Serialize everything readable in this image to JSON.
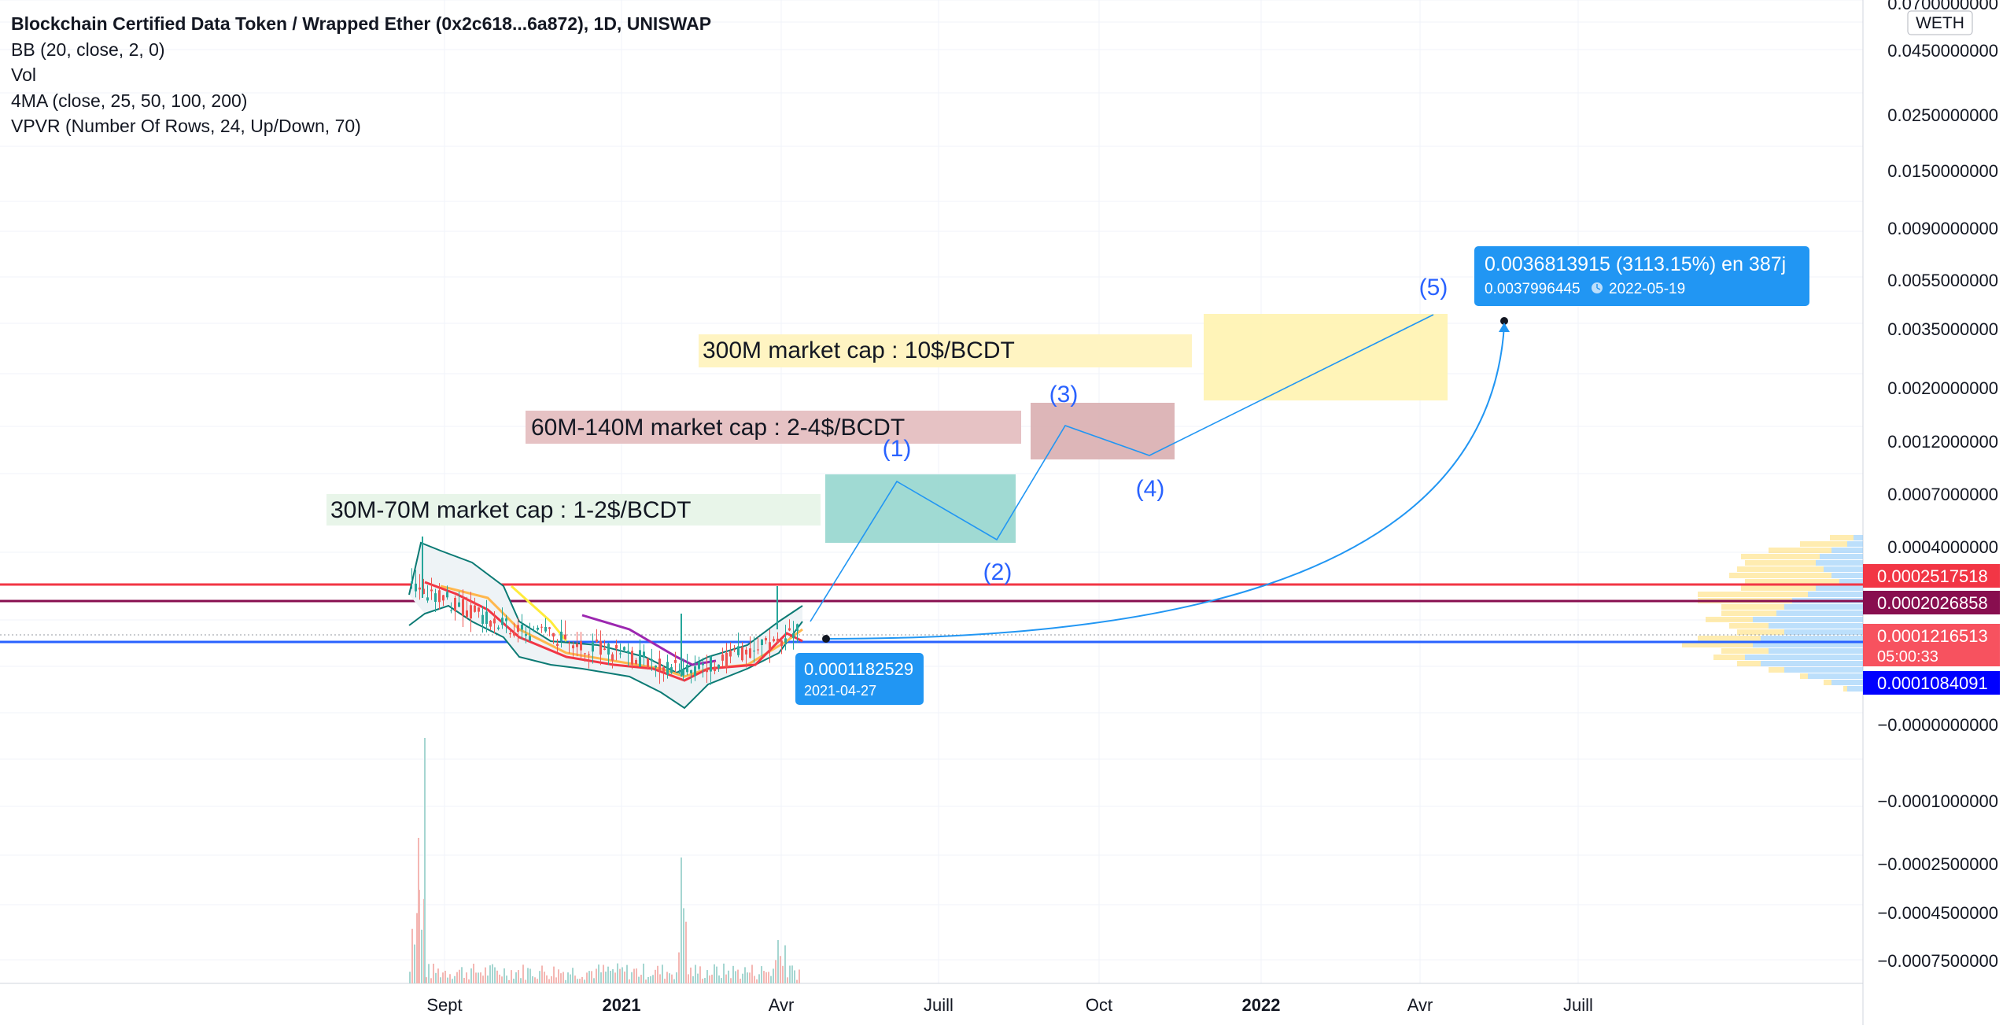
{
  "chart_data": {
    "type": "candlestick",
    "title": "Blockchain Certified Data Token / Wrapped Ether (0x2c618...6a872), 1D, UNISWAP",
    "indicators": [
      "BB (20, close, 2, 0)",
      "Vol",
      "4MA (close, 25, 50, 100, 200)",
      "VPVR (Number Of Rows, 24, Up/Down, 70)"
    ],
    "currency_label": "WETH",
    "x_ticks": [
      {
        "label": "Sept",
        "bold": false
      },
      {
        "label": "2021",
        "bold": true
      },
      {
        "label": "Avr",
        "bold": false
      },
      {
        "label": "Juill",
        "bold": false
      },
      {
        "label": "Oct",
        "bold": false
      },
      {
        "label": "2022",
        "bold": true
      },
      {
        "label": "Avr",
        "bold": false
      },
      {
        "label": "Juill",
        "bold": false
      }
    ],
    "y_ticks": [
      "0.0700000000",
      "0.0450000000",
      "0.0250000000",
      "0.0150000000",
      "0.0090000000",
      "0.0055000000",
      "0.0035000000",
      "0.0020000000",
      "0.0012000000",
      "0.0007000000",
      "0.0004000000",
      "−0.0000000000",
      "−0.0001000000",
      "−0.0002500000",
      "−0.0004500000",
      "−0.0007500000"
    ],
    "price_tags": [
      {
        "label": "0.0002517518",
        "color": "#f23645"
      },
      {
        "label": "0.0002026858",
        "color": "#880e4f"
      },
      {
        "label": "0.0001216513",
        "sub": "05:00:33",
        "color": "#f7525f"
      },
      {
        "label": "0.0001084091",
        "color": "#0000ff"
      }
    ],
    "horizontal_lines": [
      {
        "value": 0.0002517518,
        "color": "#f23645"
      },
      {
        "value": 0.0002026858,
        "color": "#880e4f"
      },
      {
        "value": 0.0001084091,
        "color": "#2962ff"
      }
    ],
    "zones": [
      {
        "label": "30M-70M market cap : 1-2$/BCDT",
        "color": "#e8f5e9"
      },
      {
        "label": "60M-140M market cap : 2-4$/BCDT",
        "color": "#e6c2c4"
      },
      {
        "label": "300M market cap : 10$/BCDT",
        "color": "#fff4c2"
      }
    ],
    "wave_labels": [
      "(1)",
      "(2)",
      "(3)",
      "(4)",
      "(5)"
    ],
    "projection": {
      "start_price": "0.0001182529",
      "start_date": "2021-04-27",
      "end_text": "0.0036813915 (3113.15%) en 387j",
      "end_price": "0.0037996445",
      "end_date": "2022-05-19"
    },
    "colors": {
      "up": "#26a69a",
      "down": "#ef5350",
      "bb_band": "#0b7a74",
      "ma_fast": "#f23645",
      "ma_mid": "#ffb74d",
      "ma_slow": "#ffeb3b",
      "ma_200": "#9c27b0",
      "projection": "#2196f3",
      "wave_text": "#2962ff"
    }
  }
}
